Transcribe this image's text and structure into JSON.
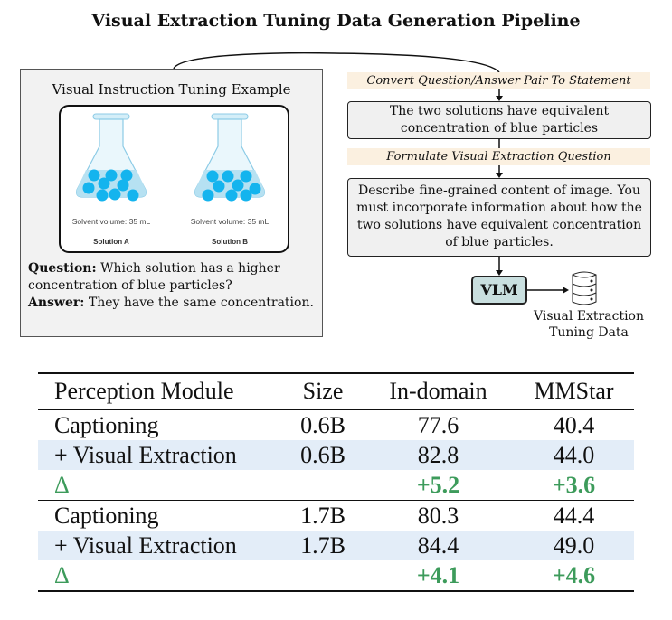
{
  "title": "Visual Extraction Tuning Data Generation Pipeline",
  "example": {
    "title": "Visual Instruction Tuning Example",
    "solutions": [
      {
        "caption": "Solvent volume: 35 mL",
        "label": "Solution A"
      },
      {
        "caption": "Solvent volume: 35 mL",
        "label": "Solution B"
      }
    ],
    "question_label": "Question:",
    "question": "Which solution has a higher concentration of blue particles?",
    "answer_label": "Answer:",
    "answer": "They have the same concentration.",
    "particle_color": "#14b4ee"
  },
  "pipeline": {
    "step1_label": "Convert Question/Answer Pair To Statement",
    "statement": "The two solutions have equivalent concentration of blue particles",
    "step2_label": "Formulate Visual Extraction Question",
    "question": "Describe fine-grained content of image. You must incorporate information about how the two solutions have equivalent concentration of blue particles.",
    "model": "VLM",
    "output_line1": "Visual Extraction",
    "output_line2": "Tuning Data",
    "output_icon": "database-icon"
  },
  "table": {
    "headers": [
      "Perception Module",
      "Size",
      "In-domain",
      "MMStar"
    ],
    "groups": [
      {
        "rows": [
          {
            "module": "Captioning",
            "size": "0.6B",
            "in_domain": "77.6",
            "mmstar": "40.4",
            "highlight": false
          },
          {
            "module": "+ Visual Extraction",
            "size": "0.6B",
            "in_domain": "82.8",
            "mmstar": "44.0",
            "highlight": true
          }
        ],
        "delta": {
          "symbol": "Δ",
          "in_domain": "+5.2",
          "mmstar": "+3.6"
        }
      },
      {
        "rows": [
          {
            "module": "Captioning",
            "size": "1.7B",
            "in_domain": "80.3",
            "mmstar": "44.4",
            "highlight": false
          },
          {
            "module": "+ Visual Extraction",
            "size": "1.7B",
            "in_domain": "84.4",
            "mmstar": "49.0",
            "highlight": true
          }
        ],
        "delta": {
          "symbol": "Δ",
          "in_domain": "+4.1",
          "mmstar": "+4.6"
        }
      }
    ],
    "highlight_color": "#e3edf8",
    "delta_color": "#3d9b5b"
  }
}
